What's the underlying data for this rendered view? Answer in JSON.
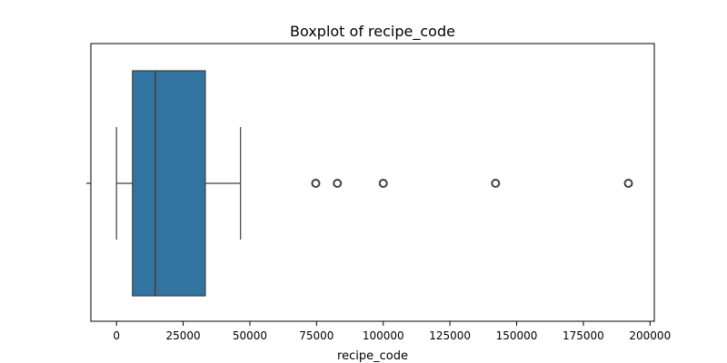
{
  "chart_data": {
    "type": "box",
    "title": "Boxplot of recipe_code",
    "xlabel": "recipe_code",
    "ylabel": "",
    "orientation": "horizontal",
    "xlim": [
      -9600,
      201600
    ],
    "xticks": [
      0,
      25000,
      50000,
      75000,
      100000,
      125000,
      150000,
      175000,
      200000
    ],
    "box": {
      "whisker_low": 0,
      "q1": 6000,
      "median": 14500,
      "q3": 33300,
      "whisker_high": 46500
    },
    "outliers": [
      74700,
      82800,
      100000,
      142100,
      191900
    ],
    "grid": false,
    "colors": {
      "box_fill": "#3274a1",
      "line": "#3f3f3f",
      "axes": "#000000"
    }
  }
}
